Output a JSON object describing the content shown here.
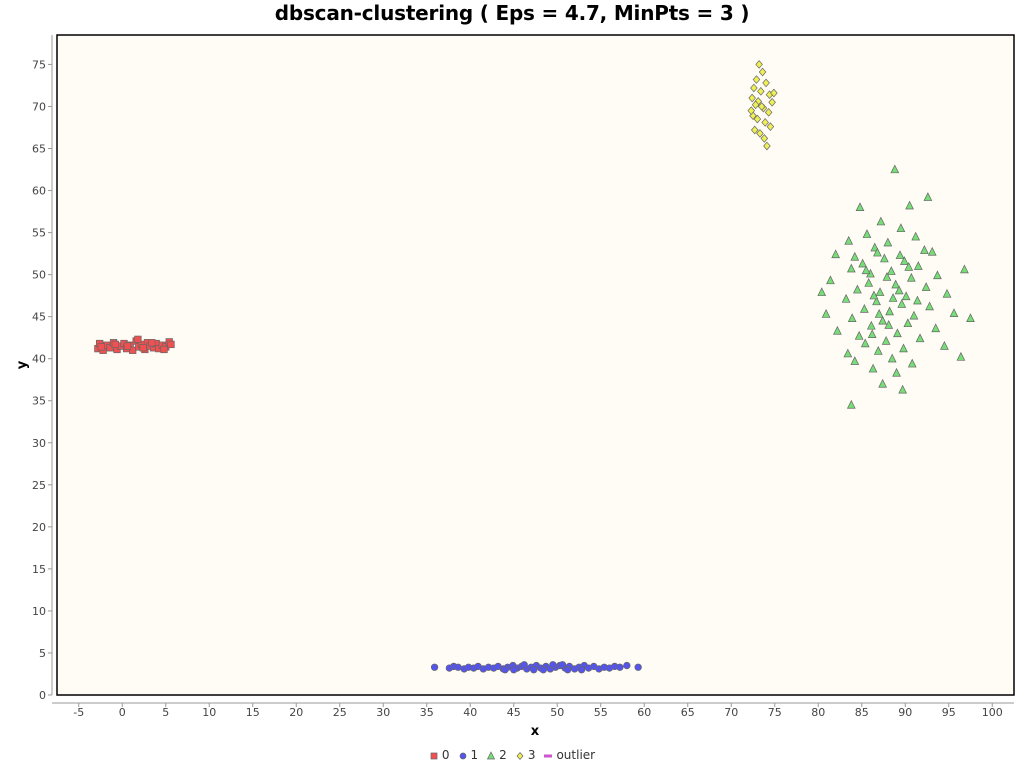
{
  "chart_data": {
    "type": "scatter",
    "title": "dbscan-clustering ( Eps = 4.7, MinPts = 3 )",
    "xlabel": "x",
    "ylabel": "y",
    "xlim": [
      -7.5,
      102.5
    ],
    "ylim": [
      0,
      78.5
    ],
    "x_ticks": [
      -5,
      0,
      5,
      10,
      15,
      20,
      25,
      30,
      35,
      40,
      45,
      50,
      55,
      60,
      65,
      70,
      75,
      80,
      85,
      90,
      95,
      100
    ],
    "y_ticks": [
      0,
      5,
      10,
      15,
      20,
      25,
      30,
      35,
      40,
      45,
      50,
      55,
      60,
      65,
      70,
      75
    ],
    "grid": false,
    "background": "#fffcf5",
    "legend_position": "bottom",
    "series": [
      {
        "name": "0",
        "marker": "square",
        "color": "#f05050",
        "points": [
          [
            -2.8,
            41.2
          ],
          [
            -2.6,
            41.8
          ],
          [
            -2.2,
            41.0
          ],
          [
            -1.8,
            41.6
          ],
          [
            -1.4,
            41.3
          ],
          [
            -1.0,
            41.9
          ],
          [
            -0.6,
            41.1
          ],
          [
            -0.2,
            41.5
          ],
          [
            0.2,
            41.8
          ],
          [
            0.5,
            41.2
          ],
          [
            0.9,
            41.6
          ],
          [
            1.2,
            41.0
          ],
          [
            1.6,
            42.1
          ],
          [
            1.9,
            41.4
          ],
          [
            2.2,
            41.7
          ],
          [
            2.6,
            41.1
          ],
          [
            2.9,
            41.9
          ],
          [
            3.2,
            41.5
          ],
          [
            3.6,
            41.3
          ],
          [
            3.9,
            41.8
          ],
          [
            4.2,
            41.2
          ],
          [
            4.6,
            41.6
          ],
          [
            5.0,
            41.4
          ],
          [
            5.4,
            42.0
          ],
          [
            5.6,
            41.7
          ],
          [
            -2.4,
            41.4
          ],
          [
            -0.8,
            41.7
          ],
          [
            0.6,
            41.5
          ],
          [
            1.8,
            42.3
          ],
          [
            2.4,
            41.3
          ],
          [
            3.4,
            41.9
          ],
          [
            4.8,
            41.1
          ]
        ]
      },
      {
        "name": "1",
        "marker": "circle",
        "color": "#5555ee",
        "points": [
          [
            35.9,
            3.3
          ],
          [
            37.6,
            3.2
          ],
          [
            38.1,
            3.4
          ],
          [
            38.6,
            3.3
          ],
          [
            39.3,
            3.1
          ],
          [
            39.8,
            3.3
          ],
          [
            40.4,
            3.2
          ],
          [
            40.9,
            3.4
          ],
          [
            41.5,
            3.1
          ],
          [
            42.1,
            3.3
          ],
          [
            42.7,
            3.2
          ],
          [
            43.2,
            3.4
          ],
          [
            43.8,
            3.1
          ],
          [
            44.3,
            3.3
          ],
          [
            44.9,
            3.5
          ],
          [
            45.4,
            3.2
          ],
          [
            45.9,
            3.4
          ],
          [
            46.5,
            3.1
          ],
          [
            47.0,
            3.3
          ],
          [
            47.6,
            3.5
          ],
          [
            48.1,
            3.2
          ],
          [
            48.7,
            3.4
          ],
          [
            49.2,
            3.1
          ],
          [
            49.8,
            3.3
          ],
          [
            50.3,
            3.5
          ],
          [
            50.9,
            3.2
          ],
          [
            51.4,
            3.4
          ],
          [
            52.0,
            3.1
          ],
          [
            52.5,
            3.3
          ],
          [
            53.1,
            3.5
          ],
          [
            53.6,
            3.2
          ],
          [
            54.2,
            3.4
          ],
          [
            54.8,
            3.1
          ],
          [
            55.4,
            3.3
          ],
          [
            56.0,
            3.2
          ],
          [
            56.6,
            3.4
          ],
          [
            57.2,
            3.3
          ],
          [
            58.0,
            3.5
          ],
          [
            59.3,
            3.3
          ],
          [
            44.0,
            3.0
          ],
          [
            46.2,
            3.6
          ],
          [
            48.4,
            3.0
          ],
          [
            50.6,
            3.6
          ],
          [
            52.8,
            3.0
          ],
          [
            47.3,
            3.0
          ],
          [
            51.2,
            3.0
          ],
          [
            45.0,
            3.0
          ],
          [
            49.5,
            3.6
          ]
        ]
      },
      {
        "name": "2",
        "marker": "triangle",
        "color": "#77dd77",
        "points": [
          [
            88.8,
            62.5
          ],
          [
            92.6,
            59.2
          ],
          [
            90.5,
            58.2
          ],
          [
            84.8,
            58.0
          ],
          [
            87.2,
            56.3
          ],
          [
            89.5,
            55.5
          ],
          [
            85.6,
            54.8
          ],
          [
            91.2,
            54.5
          ],
          [
            83.5,
            54.0
          ],
          [
            88.0,
            53.8
          ],
          [
            86.5,
            53.2
          ],
          [
            92.2,
            52.9
          ],
          [
            93.1,
            52.7
          ],
          [
            82.0,
            52.4
          ],
          [
            84.2,
            52.1
          ],
          [
            87.6,
            51.9
          ],
          [
            89.9,
            51.6
          ],
          [
            85.1,
            51.3
          ],
          [
            91.5,
            51.0
          ],
          [
            83.8,
            50.7
          ],
          [
            96.8,
            50.6
          ],
          [
            88.4,
            50.4
          ],
          [
            86.0,
            50.1
          ],
          [
            93.7,
            49.9
          ],
          [
            90.7,
            49.6
          ],
          [
            81.4,
            49.3
          ],
          [
            85.8,
            49.0
          ],
          [
            88.9,
            48.8
          ],
          [
            92.4,
            48.5
          ],
          [
            84.5,
            48.2
          ],
          [
            87.1,
            47.9
          ],
          [
            94.8,
            47.7
          ],
          [
            90.1,
            47.4
          ],
          [
            80.4,
            47.9
          ],
          [
            83.2,
            47.1
          ],
          [
            86.7,
            46.8
          ],
          [
            89.6,
            46.5
          ],
          [
            92.8,
            46.2
          ],
          [
            85.3,
            45.9
          ],
          [
            88.2,
            45.6
          ],
          [
            95.6,
            45.4
          ],
          [
            80.9,
            45.3
          ],
          [
            91.0,
            45.1
          ],
          [
            83.9,
            44.8
          ],
          [
            97.5,
            44.8
          ],
          [
            87.4,
            44.5
          ],
          [
            90.3,
            44.2
          ],
          [
            86.1,
            43.9
          ],
          [
            93.5,
            43.6
          ],
          [
            82.2,
            43.3
          ],
          [
            89.1,
            43.0
          ],
          [
            84.7,
            42.7
          ],
          [
            91.7,
            42.4
          ],
          [
            87.8,
            42.1
          ],
          [
            85.4,
            41.8
          ],
          [
            94.5,
            41.5
          ],
          [
            89.8,
            41.2
          ],
          [
            86.9,
            40.9
          ],
          [
            83.4,
            40.6
          ],
          [
            96.4,
            40.2
          ],
          [
            88.5,
            40.0
          ],
          [
            84.2,
            39.7
          ],
          [
            90.8,
            39.4
          ],
          [
            86.3,
            38.8
          ],
          [
            89.0,
            38.3
          ],
          [
            87.4,
            37.0
          ],
          [
            89.7,
            36.3
          ],
          [
            83.8,
            34.5
          ],
          [
            86.8,
            52.6
          ],
          [
            87.9,
            49.7
          ],
          [
            88.6,
            47.2
          ],
          [
            89.3,
            48.1
          ],
          [
            86.4,
            47.5
          ],
          [
            90.4,
            50.9
          ],
          [
            87.0,
            45.3
          ],
          [
            88.1,
            44.0
          ],
          [
            85.5,
            50.5
          ],
          [
            89.4,
            52.3
          ],
          [
            91.4,
            46.9
          ],
          [
            86.2,
            42.9
          ]
        ]
      },
      {
        "name": "3",
        "marker": "diamond",
        "color": "#eeee55",
        "points": [
          [
            73.2,
            75.0
          ],
          [
            73.6,
            74.1
          ],
          [
            72.9,
            73.2
          ],
          [
            74.0,
            72.8
          ],
          [
            72.6,
            72.2
          ],
          [
            73.4,
            71.8
          ],
          [
            74.4,
            71.4
          ],
          [
            72.4,
            71.0
          ],
          [
            73.1,
            70.6
          ],
          [
            74.9,
            71.6
          ],
          [
            72.8,
            70.2
          ],
          [
            73.7,
            69.8
          ],
          [
            74.3,
            69.3
          ],
          [
            72.5,
            68.9
          ],
          [
            73.0,
            68.5
          ],
          [
            73.9,
            68.1
          ],
          [
            74.5,
            67.6
          ],
          [
            72.7,
            67.2
          ],
          [
            73.3,
            66.8
          ],
          [
            73.8,
            66.2
          ],
          [
            74.1,
            65.3
          ],
          [
            72.3,
            69.5
          ],
          [
            74.7,
            70.5
          ],
          [
            73.5,
            70.0
          ]
        ]
      },
      {
        "name": "outlier",
        "marker": "bar",
        "color": "#cc55cc",
        "points": []
      }
    ]
  }
}
